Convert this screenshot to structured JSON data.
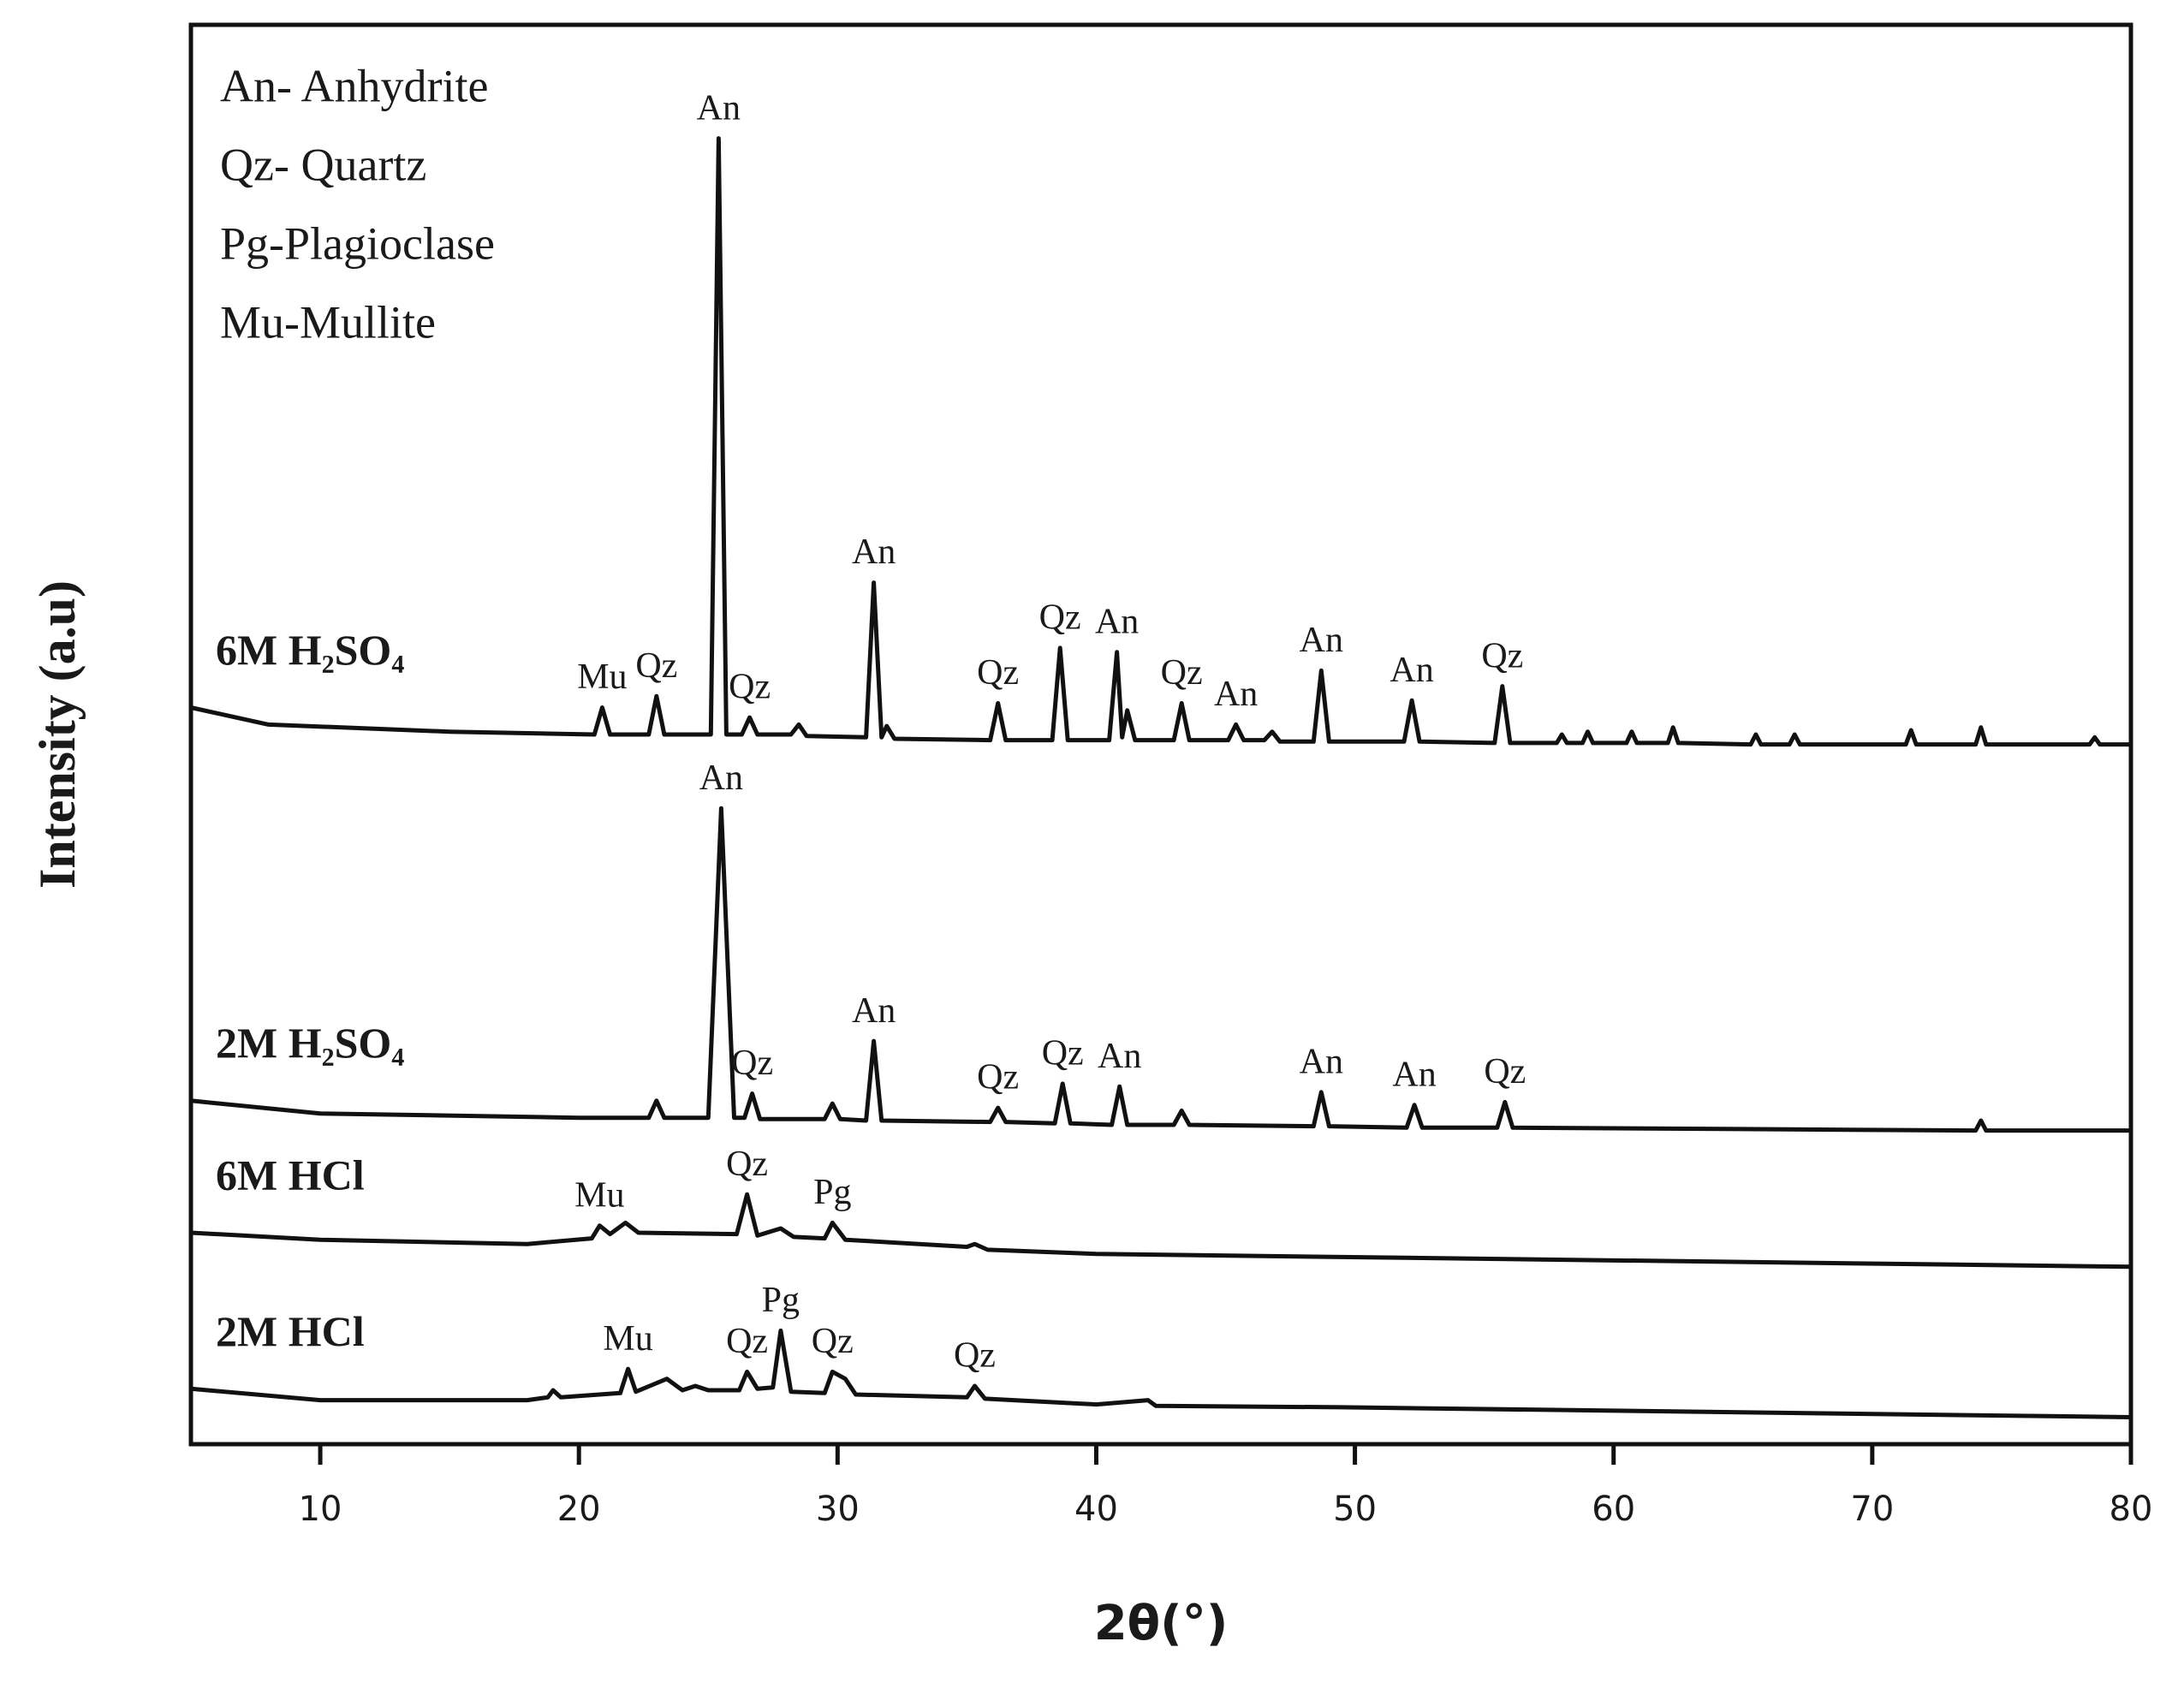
{
  "chart_data": {
    "type": "line",
    "x_label": "2θ(°)",
    "y_label": "Intensity (a.u)",
    "key": [
      "An- Anhydrite",
      "Qz- Quartz",
      "Pg-Plagioclase",
      "Mu-Mullite"
    ],
    "xlim": [
      5,
      80
    ],
    "xticks": [
      10,
      20,
      30,
      40,
      50,
      60,
      70,
      80
    ],
    "ylim": [
      0,
      100
    ],
    "series": [
      {
        "name": "6M H₂SO₄",
        "color": "#111111",
        "x": [
          5,
          8,
          15,
          20.6,
          20.9,
          21.2,
          22.7,
          23.0,
          23.3,
          25.1,
          25.4,
          25.7,
          26.3,
          26.6,
          26.9,
          28.2,
          28.5,
          28.8,
          31.1,
          31.4,
          31.7,
          31.9,
          32.2,
          35.9,
          36.2,
          36.5,
          38.3,
          38.6,
          38.9,
          40.5,
          40.8,
          41.0,
          41.2,
          41.5,
          43.0,
          43.3,
          43.6,
          45.1,
          45.4,
          45.7,
          46.5,
          46.8,
          47.1,
          48.4,
          48.7,
          49.0,
          51.9,
          52.2,
          52.5,
          55.4,
          55.7,
          56.0,
          57.8,
          58.0,
          58.2,
          58.8,
          59.0,
          59.2,
          60.5,
          60.7,
          60.9,
          62.1,
          62.3,
          62.5,
          65.3,
          65.5,
          65.7,
          66.8,
          67.0,
          67.2,
          71.3,
          71.5,
          71.7,
          74.0,
          74.2,
          74.4,
          78.4,
          78.6,
          78.8,
          80
        ],
        "values": [
          51.9,
          50.7,
          50.2,
          50.0,
          51.9,
          50.0,
          50.0,
          52.7,
          50.0,
          50.0,
          92.0,
          50.0,
          50.0,
          51.2,
          50.0,
          50.0,
          50.7,
          49.9,
          49.8,
          60.7,
          49.8,
          50.6,
          49.7,
          49.6,
          52.2,
          49.6,
          49.6,
          56.1,
          49.6,
          49.6,
          55.8,
          49.8,
          51.7,
          49.6,
          49.6,
          52.2,
          49.6,
          49.6,
          50.7,
          49.6,
          49.6,
          50.2,
          49.5,
          49.5,
          54.5,
          49.5,
          49.5,
          52.4,
          49.5,
          49.4,
          53.4,
          49.4,
          49.4,
          50.0,
          49.4,
          49.4,
          50.2,
          49.4,
          49.4,
          50.2,
          49.4,
          49.4,
          50.5,
          49.4,
          49.3,
          50.0,
          49.3,
          49.3,
          50.0,
          49.3,
          49.3,
          50.3,
          49.3,
          49.3,
          50.5,
          49.3,
          49.3,
          49.8,
          49.3,
          49.3
        ],
        "peaks": [
          {
            "label": "Mu",
            "x": 20.9
          },
          {
            "label": "Qz",
            "x": 23.0
          },
          {
            "label": "An",
            "x": 25.4
          },
          {
            "label": "Qz",
            "x": 26.6
          },
          {
            "label": "An",
            "x": 31.4
          },
          {
            "label": "Qz",
            "x": 36.2
          },
          {
            "label": "Qz",
            "x": 38.6
          },
          {
            "label": "An",
            "x": 40.8
          },
          {
            "label": "Qz",
            "x": 43.3
          },
          {
            "label": "An",
            "x": 45.4
          },
          {
            "label": "An",
            "x": 48.7
          },
          {
            "label": "An",
            "x": 52.2
          },
          {
            "label": "Qz",
            "x": 55.7
          }
        ]
      },
      {
        "name": "2M H₂SO₄",
        "color": "#111111",
        "x": [
          5,
          10,
          20,
          22.7,
          23.0,
          23.3,
          25.0,
          25.5,
          26.0,
          26.4,
          26.7,
          27.0,
          29.5,
          29.8,
          30.1,
          31.1,
          31.4,
          31.7,
          35.9,
          36.2,
          36.5,
          38.4,
          38.7,
          39.0,
          40.6,
          40.9,
          41.2,
          43.0,
          43.3,
          43.6,
          48.4,
          48.7,
          49.0,
          52.0,
          52.3,
          52.6,
          55.5,
          55.8,
          56.1,
          74.0,
          74.2,
          74.4,
          80
        ],
        "values": [
          24.2,
          23.3,
          23.0,
          23.0,
          24.2,
          23.0,
          23.0,
          44.8,
          23.0,
          23.0,
          24.7,
          22.9,
          22.9,
          24.0,
          22.9,
          22.8,
          28.4,
          22.8,
          22.7,
          23.7,
          22.7,
          22.6,
          25.4,
          22.6,
          22.5,
          25.2,
          22.5,
          22.5,
          23.5,
          22.5,
          22.4,
          24.8,
          22.4,
          22.3,
          23.9,
          22.3,
          22.3,
          24.1,
          22.3,
          22.1,
          22.8,
          22.1,
          22.1
        ],
        "peaks": [
          {
            "label": "An",
            "x": 25.5
          },
          {
            "label": "Qz",
            "x": 26.7
          },
          {
            "label": "An",
            "x": 31.4
          },
          {
            "label": "Qz",
            "x": 36.2
          },
          {
            "label": "Qz",
            "x": 38.7
          },
          {
            "label": "An",
            "x": 40.9
          },
          {
            "label": "An",
            "x": 48.7
          },
          {
            "label": "An",
            "x": 52.3
          },
          {
            "label": "Qz",
            "x": 55.8
          }
        ]
      },
      {
        "name": "6M HCl",
        "color": "#111111",
        "x": [
          5,
          10,
          18,
          20.5,
          20.8,
          21.2,
          21.8,
          22.3,
          26.1,
          26.5,
          26.9,
          27.8,
          28.3,
          29.5,
          29.8,
          30.3,
          35.0,
          35.3,
          35.8,
          40,
          80
        ],
        "values": [
          14.9,
          14.4,
          14.1,
          14.5,
          15.4,
          14.8,
          15.6,
          14.9,
          14.8,
          17.6,
          14.7,
          15.2,
          14.6,
          14.5,
          15.6,
          14.4,
          13.9,
          14.1,
          13.7,
          13.4,
          12.5
        ],
        "peaks": [
          {
            "label": "Mu",
            "x": 20.8
          },
          {
            "label": "Qz",
            "x": 26.5
          },
          {
            "label": "Pg",
            "x": 29.8
          }
        ]
      },
      {
        "name": "2M HCl",
        "color": "#111111",
        "x": [
          5,
          10,
          18,
          18.8,
          19.0,
          19.3,
          21.6,
          21.9,
          22.2,
          23.4,
          24.0,
          24.5,
          25.0,
          26.2,
          26.5,
          26.9,
          27.5,
          27.8,
          28.2,
          29.5,
          29.8,
          30.3,
          30.7,
          35.0,
          35.3,
          35.7,
          40,
          42.0,
          42.3,
          49.5,
          80
        ],
        "values": [
          3.9,
          3.1,
          3.1,
          3.3,
          3.8,
          3.3,
          3.6,
          5.3,
          3.7,
          4.6,
          3.8,
          4.1,
          3.8,
          3.8,
          5.1,
          3.9,
          4.0,
          8.0,
          3.7,
          3.6,
          5.1,
          4.6,
          3.5,
          3.3,
          4.1,
          3.2,
          2.8,
          3.1,
          2.7,
          2.6,
          1.9
        ],
        "peaks": [
          {
            "label": "Mu",
            "x": 21.9
          },
          {
            "label": "Qz",
            "x": 26.5
          },
          {
            "label": "Pg",
            "x": 27.8
          },
          {
            "label": "Qz",
            "x": 29.8
          },
          {
            "label": "Qz",
            "x": 35.3
          }
        ]
      }
    ]
  }
}
